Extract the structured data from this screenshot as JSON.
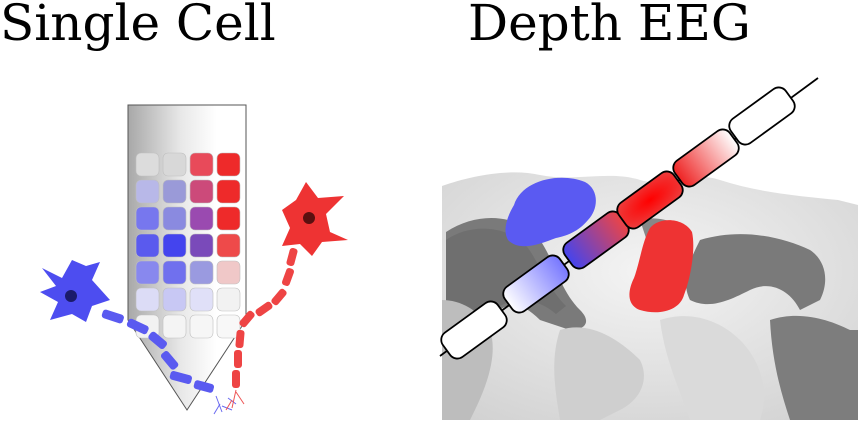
{
  "titles": {
    "left": "Single Cell",
    "right": "Depth EEG"
  },
  "colors": {
    "blue": "#4f4ff0",
    "red": "#ee3333",
    "probe_gray": "#c8c8c8",
    "brain_light": "#e8e8e8",
    "brain_dark": "#777777"
  },
  "panels": [
    {
      "name": "single-cell",
      "icons": [
        "microelectrode-probe-icon",
        "blue-neuron-icon",
        "red-neuron-icon"
      ]
    },
    {
      "name": "depth-eeg",
      "icons": [
        "brain-surface-icon",
        "depth-electrode-icon"
      ]
    }
  ]
}
